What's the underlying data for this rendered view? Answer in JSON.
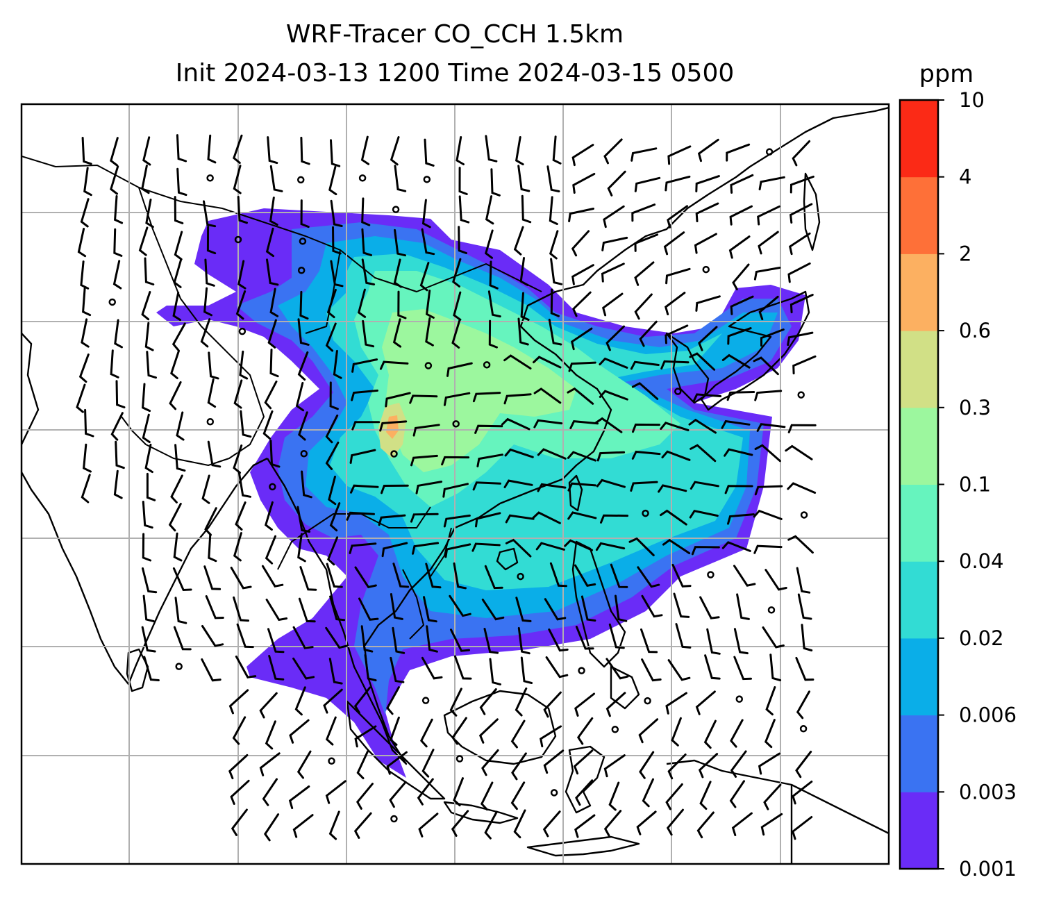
{
  "title": {
    "line1": "WRF-Tracer CO_CCH 1.5km",
    "line2": "Init 2024-03-13 1200 Time 2024-03-15 0500"
  },
  "colorbar": {
    "unit": "ppm",
    "levels": [
      "0.001",
      "0.003",
      "0.006",
      "0.02",
      "0.04",
      "0.1",
      "0.3",
      "0.6",
      "2",
      "4",
      "10"
    ],
    "colors": [
      "#6a2cf7",
      "#3a73f2",
      "#0aaee8",
      "#32dcd4",
      "#66f4be",
      "#9cf79e",
      "#d1e086",
      "#fcb061",
      "#fe7038",
      "#fb2a16"
    ]
  },
  "map": {
    "field": "CO_CCH tracer concentration",
    "level": "1.5km",
    "overlay": "wind barbs",
    "coastlines": true,
    "gridlines": true
  }
}
